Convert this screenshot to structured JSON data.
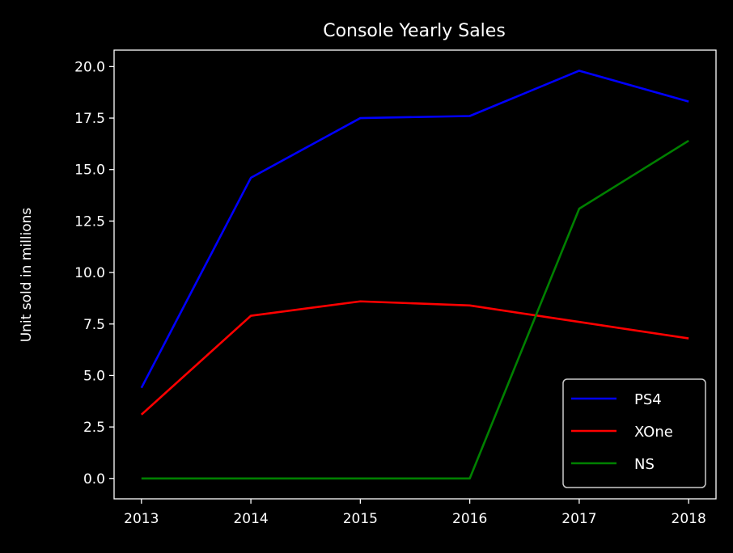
{
  "chart_data": {
    "type": "line",
    "title": "Console Yearly Sales",
    "xlabel": "",
    "ylabel": "Unit sold in millions",
    "x": [
      2013,
      2014,
      2015,
      2016,
      2017,
      2018
    ],
    "x_tick_labels": [
      "2013",
      "2014",
      "2015",
      "2016",
      "2017",
      "2018"
    ],
    "y_ticks": [
      0.0,
      2.5,
      5.0,
      7.5,
      10.0,
      12.5,
      15.0,
      17.5,
      20.0
    ],
    "y_tick_labels": [
      "0.0",
      "2.5",
      "5.0",
      "7.5",
      "10.0",
      "12.5",
      "15.0",
      "17.5",
      "20.0"
    ],
    "xlim": [
      2012.75,
      2018.25
    ],
    "ylim": [
      -0.99,
      20.8
    ],
    "grid": false,
    "legend_position": "lower-right",
    "series": [
      {
        "name": "PS4",
        "color": "#0000ff",
        "values": [
          4.4,
          14.6,
          17.5,
          17.6,
          19.8,
          18.3
        ]
      },
      {
        "name": "XOne",
        "color": "#ff0000",
        "values": [
          3.1,
          7.9,
          8.6,
          8.4,
          7.6,
          6.8
        ]
      },
      {
        "name": "NS",
        "color": "#008000",
        "values": [
          0.0,
          0.0,
          0.0,
          0.0,
          13.1,
          16.4
        ]
      }
    ]
  }
}
